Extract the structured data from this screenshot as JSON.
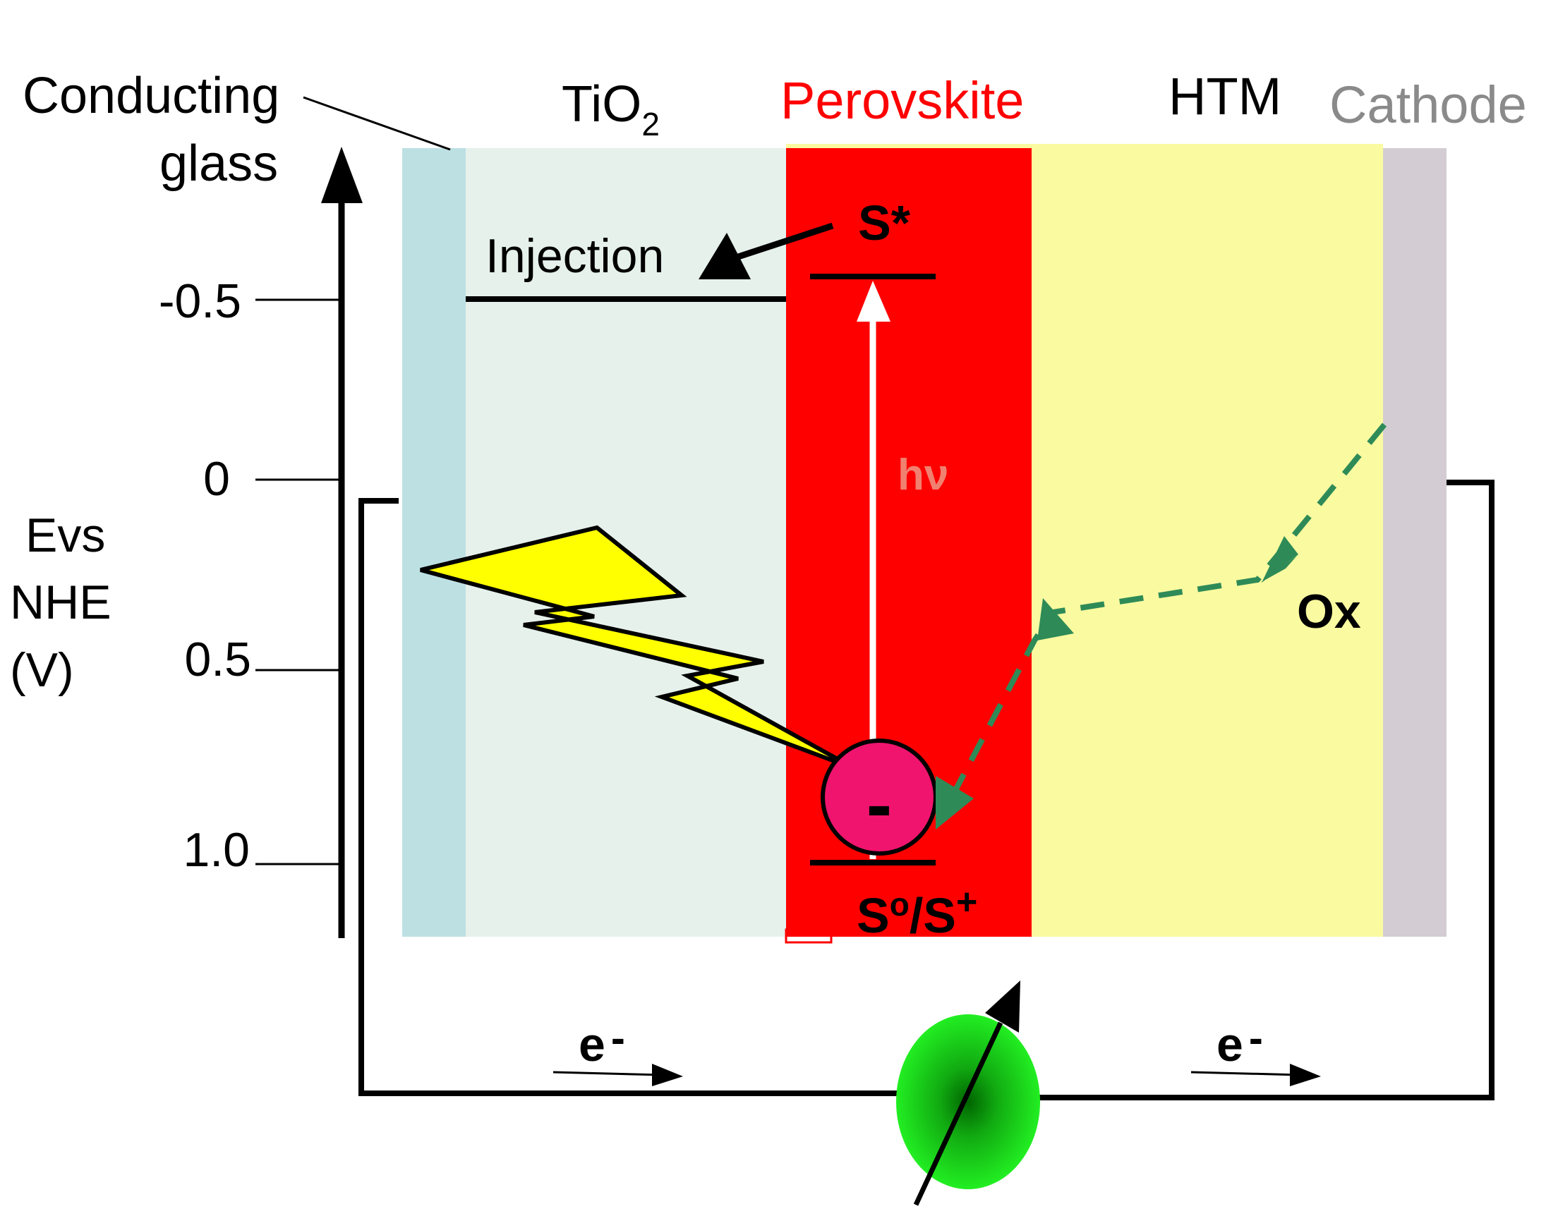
{
  "layers": {
    "conducting_glass": {
      "label_line1": "Conducting",
      "label_line2": "glass",
      "color": "#bde0e3"
    },
    "tio2": {
      "label": "TiO",
      "subscript": "2",
      "color": "#e6f1ec"
    },
    "perovskite": {
      "label": "Perovskite",
      "color": "#ff0000"
    },
    "htm": {
      "label": "HTM",
      "color": "#fafaa0"
    },
    "cathode": {
      "label": "Cathode",
      "color": "#d3cdd3",
      "label_color": "#8a8a8a"
    }
  },
  "axis": {
    "label_line1": "Evs",
    "label_line2": "NHE",
    "label_line3": "(V)",
    "ticks": [
      "-0.5",
      "0",
      "0.5",
      "1.0"
    ]
  },
  "annotations": {
    "excited_state": "S*",
    "injection": "Injection",
    "photon": "hν",
    "ground_state_main": "S",
    "ground_state_sup1": "o",
    "ground_state_mid": "/S",
    "ground_state_sup2": "+",
    "oxidized": "Ox",
    "hole_sign": "-",
    "electron_left": "e",
    "electron_right": "e",
    "electron_sup": "-"
  },
  "colors": {
    "lightning": "#ffff00",
    "hole": "#f0146e",
    "dashed_path": "#2e8b57",
    "load": "#22dd22",
    "photon_text": "#f08070"
  }
}
